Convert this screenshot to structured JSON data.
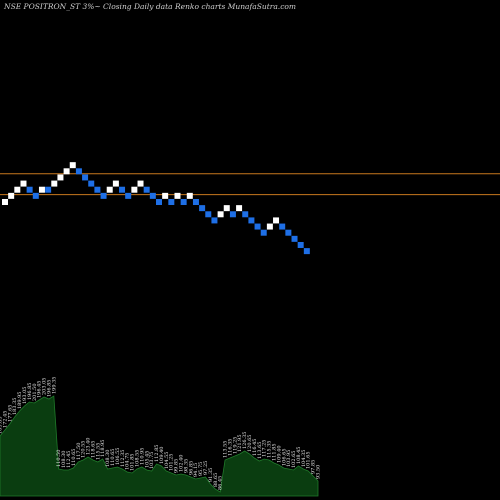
{
  "title": "NSE POSITRON_ST 3%~  Closing Daily data  Renko  charts MunafaSutra.com",
  "colors": {
    "background": "#000000",
    "up_brick": "#ffffff",
    "down_brick": "#1e6fe6",
    "level_line": "#c8781e",
    "volume_fill": "#0a3d10",
    "volume_line": "#1f7a2a"
  },
  "chart_data": {
    "type": "renko",
    "title": "NSE POSITRON_ST 3%~  Closing Daily data  Renko  charts MunafaSutra.com",
    "brick_size_pct": 3,
    "grid": false,
    "y_axis_labels": "none",
    "bricks": [
      {
        "dir": "up",
        "level": 8
      },
      {
        "dir": "up",
        "level": 9
      },
      {
        "dir": "up",
        "level": 10
      },
      {
        "dir": "up",
        "level": 11
      },
      {
        "dir": "down",
        "level": 10
      },
      {
        "dir": "down",
        "level": 9
      },
      {
        "dir": "up",
        "level": 10
      },
      {
        "dir": "down",
        "level": 10
      },
      {
        "dir": "up",
        "level": 11
      },
      {
        "dir": "up",
        "level": 12
      },
      {
        "dir": "up",
        "level": 13
      },
      {
        "dir": "up",
        "level": 14
      },
      {
        "dir": "down",
        "level": 13
      },
      {
        "dir": "down",
        "level": 12
      },
      {
        "dir": "down",
        "level": 11
      },
      {
        "dir": "down",
        "level": 10
      },
      {
        "dir": "down",
        "level": 9
      },
      {
        "dir": "up",
        "level": 10
      },
      {
        "dir": "up",
        "level": 11
      },
      {
        "dir": "down",
        "level": 10
      },
      {
        "dir": "down",
        "level": 9
      },
      {
        "dir": "up",
        "level": 10
      },
      {
        "dir": "up",
        "level": 11
      },
      {
        "dir": "down",
        "level": 10
      },
      {
        "dir": "down",
        "level": 9
      },
      {
        "dir": "down",
        "level": 8
      },
      {
        "dir": "up",
        "level": 9
      },
      {
        "dir": "down",
        "level": 8
      },
      {
        "dir": "up",
        "level": 9
      },
      {
        "dir": "down",
        "level": 8
      },
      {
        "dir": "up",
        "level": 9
      },
      {
        "dir": "down",
        "level": 8
      },
      {
        "dir": "down",
        "level": 7
      },
      {
        "dir": "down",
        "level": 6
      },
      {
        "dir": "down",
        "level": 5
      },
      {
        "dir": "up",
        "level": 6
      },
      {
        "dir": "up",
        "level": 7
      },
      {
        "dir": "down",
        "level": 6
      },
      {
        "dir": "up",
        "level": 7
      },
      {
        "dir": "down",
        "level": 6
      },
      {
        "dir": "down",
        "level": 5
      },
      {
        "dir": "down",
        "level": 4
      },
      {
        "dir": "down",
        "level": 3
      },
      {
        "dir": "up",
        "level": 4
      },
      {
        "dir": "up",
        "level": 5
      },
      {
        "dir": "down",
        "level": 4
      },
      {
        "dir": "down",
        "level": 3
      },
      {
        "dir": "down",
        "level": 2
      },
      {
        "dir": "down",
        "level": 1
      },
      {
        "dir": "down",
        "level": 0
      }
    ],
    "reference_lines": [
      {
        "name": "upper-level",
        "level": 12.6
      },
      {
        "name": "lower-level",
        "level": 9.2
      }
    ],
    "volume": {
      "values": [
        60,
        66,
        72,
        79,
        85,
        90,
        94,
        93,
        96,
        99,
        97,
        100,
        27,
        26,
        26,
        28,
        34,
        36,
        39,
        36,
        34,
        37,
        27,
        28,
        29,
        27,
        24,
        23,
        27,
        29,
        26,
        25,
        32,
        30,
        25,
        23,
        21,
        22,
        21,
        19,
        17,
        18,
        19,
        12,
        7,
        4,
        36,
        38,
        40,
        42,
        45,
        42,
        38,
        35,
        37,
        36,
        33,
        31,
        28,
        27,
        26,
        30,
        27,
        25,
        20,
        15
      ],
      "labels": [
        "165.85",
        "172.45",
        "177.65",
        "183.35",
        "189.95",
        "193.05",
        "196.85",
        "201.50",
        "196.45",
        "203.05",
        "196.85",
        "199.35",
        "110.50",
        "108.30",
        "112.45",
        "110.65",
        "117.50",
        "120.55",
        "123.40",
        "118.65",
        "115.55",
        "118.95",
        "108.30",
        "110.65",
        "106.55",
        "112.35",
        "104.75",
        "101.85",
        "108.55",
        "110.95",
        "105.45",
        "103.75",
        "112.85",
        "109.40",
        "104.55",
        "101.25",
        "99.85",
        "102.40",
        "98.35",
        "96.85",
        "94.15",
        "95.75",
        "97.25",
        "91.35",
        "88.65",
        "86.45",
        "113.55",
        "116.35",
        "119.25",
        "121.95",
        "126.35",
        "120.65",
        "116.45",
        "113.65",
        "117.25",
        "115.35",
        "111.85",
        "109.40",
        "106.65",
        "103.95",
        "102.65",
        "108.45",
        "104.35",
        "101.65",
        "97.85",
        "93.50"
      ]
    }
  }
}
